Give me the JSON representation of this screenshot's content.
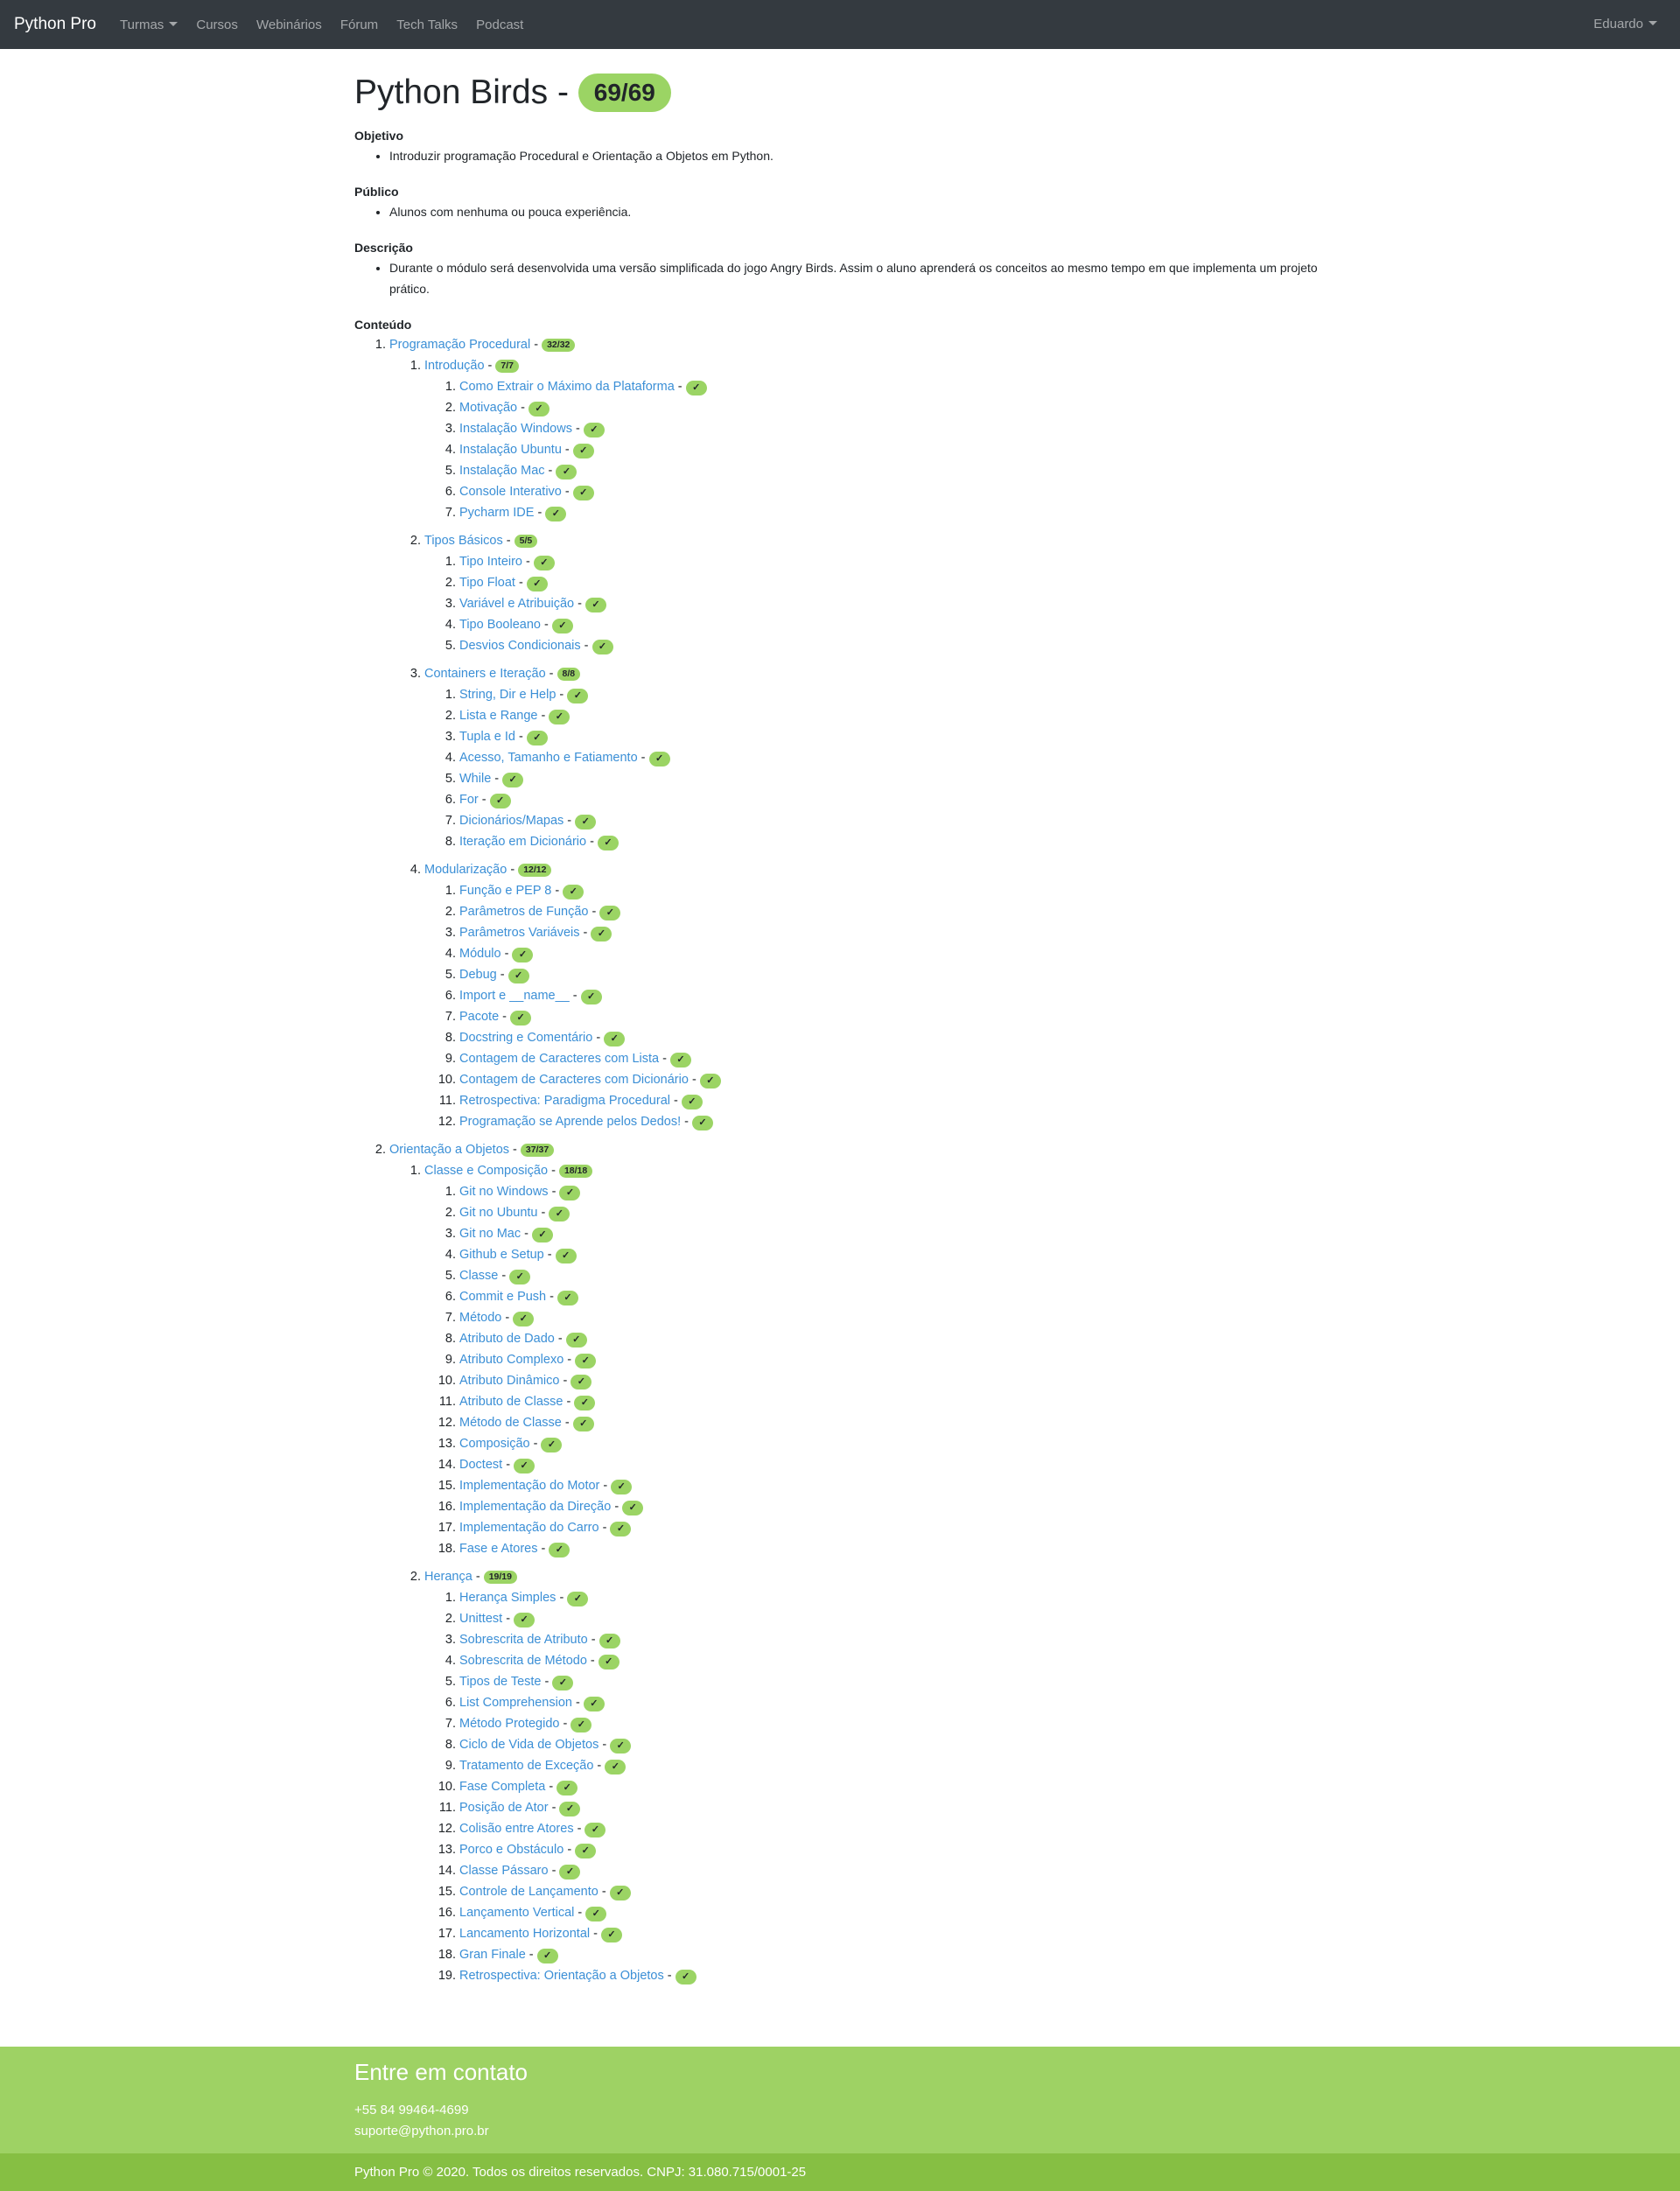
{
  "navbar": {
    "brand": "Python Pro",
    "links": [
      "Turmas",
      "Cursos",
      "Webinários",
      "Fórum",
      "Tech Talks",
      "Podcast"
    ],
    "user": "Eduardo"
  },
  "page": {
    "title": "Python Birds - ",
    "progress": "69/69",
    "sections": [
      {
        "title": "Objetivo",
        "items": [
          "Introduzir programação Procedural e Orientação a Objetos em Python."
        ]
      },
      {
        "title": "Público",
        "items": [
          "Alunos com nenhuma ou pouca experiência."
        ]
      },
      {
        "title": "Descrição",
        "items": [
          "Durante o módulo será desenvolvida uma versão simplificada do jogo Angry Birds. Assim o aluno aprenderá os conceitos ao mesmo tempo em que implementa um projeto prático."
        ]
      }
    ],
    "content_title": "Conteúdo",
    "check_mark": "✓",
    "separator": " - "
  },
  "modules": [
    {
      "title": "Programação Procedural",
      "count": "32/32",
      "chapters": [
        {
          "title": "Introdução",
          "count": "7/7",
          "lessons": [
            "Como Extrair o Máximo da Plataforma",
            "Motivação",
            "Instalação Windows",
            "Instalação Ubuntu",
            "Instalação Mac",
            "Console Interativo",
            "Pycharm IDE"
          ]
        },
        {
          "title": "Tipos Básicos",
          "count": "5/5",
          "lessons": [
            "Tipo Inteiro",
            "Tipo Float",
            "Variável e Atribuição",
            "Tipo Booleano",
            "Desvios Condicionais"
          ]
        },
        {
          "title": "Containers e Iteração",
          "count": "8/8",
          "lessons": [
            "String, Dir e Help",
            "Lista e Range",
            "Tupla e Id",
            "Acesso, Tamanho e Fatiamento",
            "While",
            "For",
            "Dicionários/Mapas",
            "Iteração em Dicionário"
          ]
        },
        {
          "title": "Modularização",
          "count": "12/12",
          "lessons": [
            "Função e PEP 8",
            "Parâmetros de Função",
            "Parâmetros Variáveis",
            "Módulo",
            "Debug",
            "Import e __name__",
            "Pacote",
            "Docstring e Comentário",
            "Contagem de Caracteres com Lista",
            "Contagem de Caracteres com Dicionário",
            "Retrospectiva: Paradigma Procedural",
            "Programação se Aprende pelos Dedos!"
          ]
        }
      ]
    },
    {
      "title": "Orientação a Objetos",
      "count": "37/37",
      "chapters": [
        {
          "title": "Classe e Composição",
          "count": "18/18",
          "lessons": [
            "Git no Windows",
            "Git no Ubuntu",
            "Git no Mac",
            "Github e Setup",
            "Classe",
            "Commit e Push",
            "Método",
            "Atributo de Dado",
            "Atributo Complexo",
            "Atributo Dinâmico",
            "Atributo de Classe",
            "Método de Classe",
            "Composição",
            "Doctest",
            "Implementação do Motor",
            "Implementação da Direção",
            "Implementação do Carro",
            "Fase e Atores"
          ]
        },
        {
          "title": "Herança",
          "count": "19/19",
          "lessons": [
            "Herança Simples",
            "Unittest",
            "Sobrescrita de Atributo",
            "Sobrescrita de Método",
            "Tipos de Teste",
            "List Comprehension",
            "Método Protegido",
            "Ciclo de Vida de Objetos",
            "Tratamento de Exceção",
            "Fase Completa",
            "Posição de Ator",
            "Colisão entre Atores",
            "Porco e Obstáculo",
            "Classe Pássaro",
            "Controle de Lançamento",
            "Lançamento Vertical",
            "Lancamento Horizontal",
            "Gran Finale",
            "Retrospectiva: Orientação a Objetos"
          ]
        }
      ]
    }
  ],
  "footer": {
    "title": "Entre em contato",
    "phone": "+55 84 99464-4699",
    "email": "suporte@python.pro.br",
    "copyright": "Python Pro © 2020. Todos os direitos reservados. CNPJ: 31.080.715/0001-25"
  },
  "colors": {
    "navbar": "#343a40",
    "badge": "#9bd464",
    "link": "#3b8fd6",
    "footer": "#9ed264",
    "copyright_bar": "#86bf43"
  }
}
